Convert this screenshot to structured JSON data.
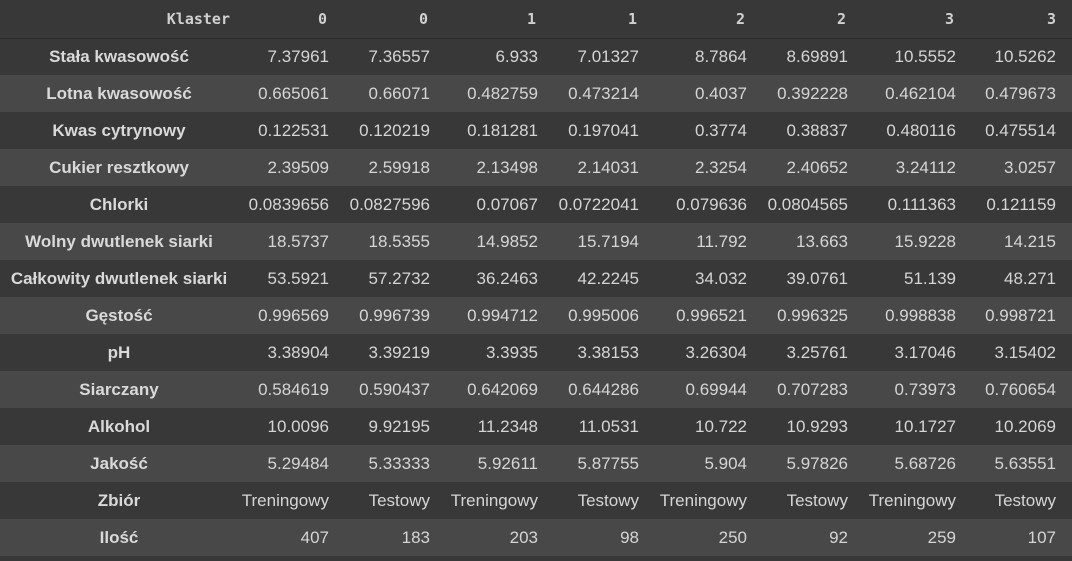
{
  "index_header": "Klaster",
  "columns": [
    "0",
    "0",
    "1",
    "1",
    "2",
    "2",
    "3",
    "3"
  ],
  "rows": [
    {
      "label": "Stała kwasowość",
      "values": [
        "7.37961",
        "7.36557",
        "6.933",
        "7.01327",
        "8.7864",
        "8.69891",
        "10.5552",
        "10.5262"
      ]
    },
    {
      "label": "Lotna kwasowość",
      "values": [
        "0.665061",
        "0.66071",
        "0.482759",
        "0.473214",
        "0.4037",
        "0.392228",
        "0.462104",
        "0.479673"
      ]
    },
    {
      "label": "Kwas cytrynowy",
      "values": [
        "0.122531",
        "0.120219",
        "0.181281",
        "0.197041",
        "0.3774",
        "0.38837",
        "0.480116",
        "0.475514"
      ]
    },
    {
      "label": "Cukier resztkowy",
      "values": [
        "2.39509",
        "2.59918",
        "2.13498",
        "2.14031",
        "2.3254",
        "2.40652",
        "3.24112",
        "3.0257"
      ]
    },
    {
      "label": "Chlorki",
      "values": [
        "0.0839656",
        "0.0827596",
        "0.07067",
        "0.0722041",
        "0.079636",
        "0.0804565",
        "0.111363",
        "0.121159"
      ]
    },
    {
      "label": "Wolny dwutlenek siarki",
      "values": [
        "18.5737",
        "18.5355",
        "14.9852",
        "15.7194",
        "11.792",
        "13.663",
        "15.9228",
        "14.215"
      ]
    },
    {
      "label": "Całkowity dwutlenek siarki",
      "values": [
        "53.5921",
        "57.2732",
        "36.2463",
        "42.2245",
        "34.032",
        "39.0761",
        "51.139",
        "48.271"
      ]
    },
    {
      "label": "Gęstość",
      "values": [
        "0.996569",
        "0.996739",
        "0.994712",
        "0.995006",
        "0.996521",
        "0.996325",
        "0.998838",
        "0.998721"
      ]
    },
    {
      "label": "pH",
      "values": [
        "3.38904",
        "3.39219",
        "3.3935",
        "3.38153",
        "3.26304",
        "3.25761",
        "3.17046",
        "3.15402"
      ]
    },
    {
      "label": "Siarczany",
      "values": [
        "0.584619",
        "0.590437",
        "0.642069",
        "0.644286",
        "0.69944",
        "0.707283",
        "0.73973",
        "0.760654"
      ]
    },
    {
      "label": "Alkohol",
      "values": [
        "10.0096",
        "9.92195",
        "11.2348",
        "11.0531",
        "10.722",
        "10.9293",
        "10.1727",
        "10.2069"
      ]
    },
    {
      "label": "Jakość",
      "values": [
        "5.29484",
        "5.33333",
        "5.92611",
        "5.87755",
        "5.904",
        "5.97826",
        "5.68726",
        "5.63551"
      ]
    },
    {
      "label": "Zbiór",
      "values": [
        "Treningowy",
        "Testowy",
        "Treningowy",
        "Testowy",
        "Treningowy",
        "Testowy",
        "Treningowy",
        "Testowy"
      ]
    },
    {
      "label": "Ilość",
      "values": [
        "407",
        "183",
        "203",
        "98",
        "250",
        "92",
        "259",
        "107"
      ]
    }
  ]
}
